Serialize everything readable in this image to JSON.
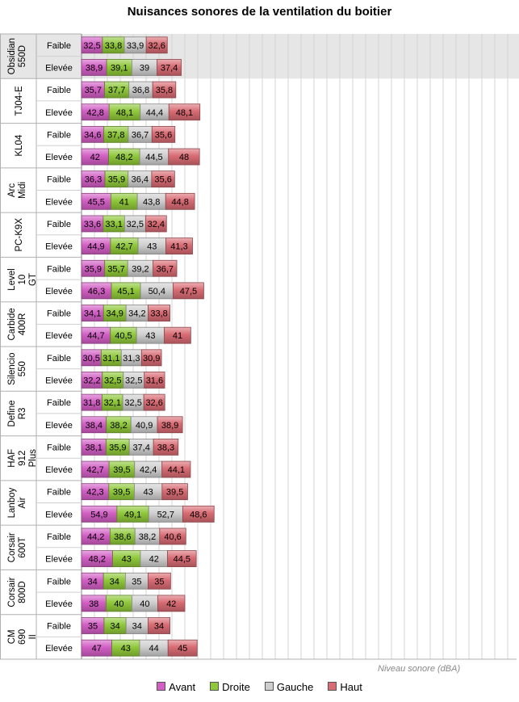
{
  "chart_data": {
    "type": "bar",
    "orientation": "horizontal",
    "stacked": true,
    "title": "Nuisances sonores de la ventilation du boitier",
    "xlabel": "Niveau sonore (dBA)",
    "ylabel": "",
    "legend_position": "bottom",
    "grid": true,
    "groups": [
      {
        "name": "Obsidian 550D",
        "highlighted": true
      },
      {
        "name": "TJ04-E"
      },
      {
        "name": "KL04"
      },
      {
        "name": "Arc Midi"
      },
      {
        "name": "PC-K9X"
      },
      {
        "name": "Level 10 GT"
      },
      {
        "name": "Carbide 400R"
      },
      {
        "name": "Silencio 550"
      },
      {
        "name": "Define R3"
      },
      {
        "name": "HAF 912 Plus"
      },
      {
        "name": "Lanboy Air"
      },
      {
        "name": "Corsair 600T"
      },
      {
        "name": "Corsair 800D"
      },
      {
        "name": "CM 690 II"
      }
    ],
    "levels": [
      "Faible",
      "Elevée"
    ],
    "series": [
      {
        "name": "Avant",
        "color": "#d25fc4",
        "values": [
          [
            32.5,
            38.9
          ],
          [
            35.7,
            42.8
          ],
          [
            34.6,
            42
          ],
          [
            36.3,
            45.5
          ],
          [
            33.6,
            44.9
          ],
          [
            35.9,
            46.3
          ],
          [
            34.1,
            44.7
          ],
          [
            30.5,
            32.2
          ],
          [
            31.8,
            38.4
          ],
          [
            38.1,
            42.7
          ],
          [
            42.3,
            54.9
          ],
          [
            44.2,
            48.2
          ],
          [
            34,
            38
          ],
          [
            35,
            47
          ]
        ]
      },
      {
        "name": "Droite",
        "color": "#8fc83a",
        "values": [
          [
            33.8,
            39.1
          ],
          [
            37.7,
            48.1
          ],
          [
            37.8,
            48.2
          ],
          [
            35.9,
            41
          ],
          [
            33.1,
            42.7
          ],
          [
            35.7,
            45.1
          ],
          [
            34.9,
            40.5
          ],
          [
            31.1,
            32.5
          ],
          [
            32.1,
            38.2
          ],
          [
            35.9,
            39.5
          ],
          [
            39.5,
            49.1
          ],
          [
            38.6,
            43
          ],
          [
            34,
            40
          ],
          [
            34,
            43
          ]
        ]
      },
      {
        "name": "Gauche",
        "color": "#cfcfcf",
        "values": [
          [
            33.9,
            39
          ],
          [
            36.8,
            44.4
          ],
          [
            36.7,
            44.5
          ],
          [
            36.4,
            43.8
          ],
          [
            32.5,
            43
          ],
          [
            39.2,
            50.4
          ],
          [
            34.2,
            43
          ],
          [
            31.3,
            32.5
          ],
          [
            32.5,
            40.9
          ],
          [
            37.4,
            42.4
          ],
          [
            43,
            52.7
          ],
          [
            38.2,
            42
          ],
          [
            35,
            40
          ],
          [
            34,
            44
          ]
        ]
      },
      {
        "name": "Haut",
        "color": "#d86b73",
        "values": [
          [
            32.6,
            37.4
          ],
          [
            35.8,
            48.1
          ],
          [
            35.6,
            48
          ],
          [
            35.6,
            44.8
          ],
          [
            32.4,
            41.3
          ],
          [
            36.7,
            47.5
          ],
          [
            33.8,
            41
          ],
          [
            30.9,
            31.6
          ],
          [
            32.6,
            38.9
          ],
          [
            38.3,
            44.1
          ],
          [
            39.5,
            48.6
          ],
          [
            40.6,
            44.5
          ],
          [
            35,
            42
          ],
          [
            34,
            45
          ]
        ]
      }
    ],
    "value_labels": [
      [
        [
          "32,5",
          "33,8",
          "33,9",
          "32,6"
        ],
        [
          "38,9",
          "39,1",
          "39",
          "37,4"
        ]
      ],
      [
        [
          "35,7",
          "37,7",
          "36,8",
          "35,8"
        ],
        [
          "42,8",
          "48,1",
          "44,4",
          "48,1"
        ]
      ],
      [
        [
          "34,6",
          "37,8",
          "36,7",
          "35,6"
        ],
        [
          "42",
          "48,2",
          "44,5",
          "48"
        ]
      ],
      [
        [
          "36,3",
          "35,9",
          "36,4",
          "35,6"
        ],
        [
          "45,5",
          "41",
          "43,8",
          "44,8"
        ]
      ],
      [
        [
          "33,6",
          "33,1",
          "32,5",
          "32,4"
        ],
        [
          "44,9",
          "42,7",
          "43",
          "41,3"
        ]
      ],
      [
        [
          "35,9",
          "35,7",
          "39,2",
          "36,7"
        ],
        [
          "46,3",
          "45,1",
          "50,4",
          "47,5"
        ]
      ],
      [
        [
          "34,1",
          "34,9",
          "34,2",
          "33,8"
        ],
        [
          "44,7",
          "40,5",
          "43",
          "41"
        ]
      ],
      [
        [
          "30,5",
          "31,1",
          "31,3",
          "30,9"
        ],
        [
          "32,2",
          "32,5",
          "32,5",
          "31,6"
        ]
      ],
      [
        [
          "31,8",
          "32,1",
          "32,5",
          "32,6"
        ],
        [
          "38,4",
          "38,2",
          "40,9",
          "38,9"
        ]
      ],
      [
        [
          "38,1",
          "35,9",
          "37,4",
          "38,3"
        ],
        [
          "42,7",
          "39,5",
          "42,4",
          "44,1"
        ]
      ],
      [
        [
          "42,3",
          "39,5",
          "43",
          "39,5"
        ],
        [
          "54,9",
          "49,1",
          "52,7",
          "48,6"
        ]
      ],
      [
        [
          "44,2",
          "38,6",
          "38,2",
          "40,6"
        ],
        [
          "48,2",
          "43",
          "42",
          "44,5"
        ]
      ],
      [
        [
          "34",
          "34",
          "35",
          "35"
        ],
        [
          "38",
          "40",
          "40",
          "42"
        ]
      ],
      [
        [
          "35",
          "34",
          "34",
          "34"
        ],
        [
          "47",
          "43",
          "44",
          "45"
        ]
      ]
    ]
  }
}
